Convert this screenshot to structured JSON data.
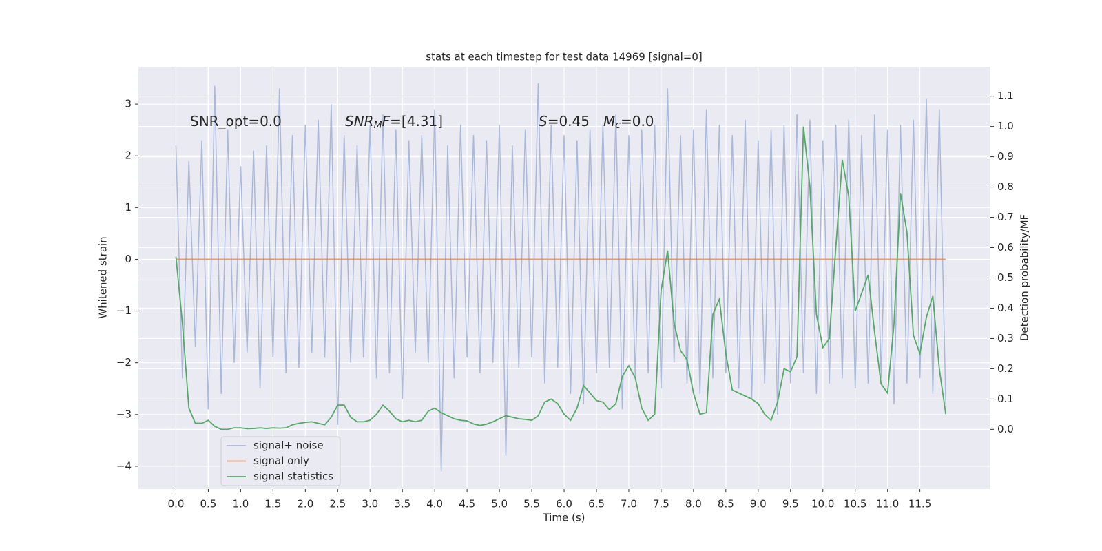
{
  "chart_data": {
    "type": "line",
    "title": "stats at each timestep for test data 14969 [signal=0]",
    "xlabel": "Time (s)",
    "ylabel": "Whitened strain",
    "y2label": "Detection probability/MF",
    "annotations": [
      [
        "SNR_opt=0.0"
      ],
      [
        "SNR",
        "M",
        "F",
        "=[4.31]"
      ],
      [
        "S",
        "=0.45"
      ],
      [
        "M",
        "c",
        "=0.0"
      ]
    ],
    "grid": true,
    "legend": "lower left",
    "xlim": [
      -0.58,
      12.59
    ],
    "ylim": [
      -4.44,
      3.72
    ],
    "y2lim": [
      -0.197,
      1.197
    ],
    "xticks": [
      {
        "value": 0,
        "label": "0.0"
      },
      0.5,
      {
        "value": 1,
        "label": "1.0"
      },
      1.5,
      {
        "value": 2,
        "label": "2.0"
      },
      2.5,
      {
        "value": 3,
        "label": "3.0"
      },
      3.5,
      {
        "value": 4,
        "label": "4.0"
      },
      4.5,
      {
        "value": 5,
        "label": "5.0"
      },
      5.5,
      {
        "value": 6,
        "label": "6.0"
      },
      6.5,
      {
        "value": 7,
        "label": "7.0"
      },
      7.5,
      {
        "value": 8,
        "label": "8.0"
      },
      8.5,
      {
        "value": 9,
        "label": "9.0"
      },
      9.5,
      {
        "value": 10,
        "label": "10.0"
      },
      10.5,
      {
        "value": 11,
        "label": "11.0"
      },
      11.5
    ],
    "yticks": [
      {
        "value": -4,
        "label": "−4"
      },
      {
        "value": -3,
        "label": "−3"
      },
      {
        "value": -2,
        "label": "−2"
      },
      {
        "value": -1,
        "label": "−1"
      },
      0,
      1,
      2,
      3
    ],
    "y2ticks": [
      {
        "value": 0,
        "label": "0.0"
      },
      0.1,
      0.2,
      0.3,
      0.4,
      0.5,
      0.6,
      0.7,
      0.8,
      0.9,
      {
        "value": 1,
        "label": "1.0"
      },
      1.1
    ],
    "x": [
      0,
      0.1,
      0.2,
      0.3,
      0.4,
      0.5,
      0.6,
      0.7,
      0.8,
      0.9,
      1,
      1.1,
      1.2,
      1.3,
      1.4,
      1.5,
      1.6,
      1.7,
      1.8,
      1.9,
      2,
      2.1,
      2.2,
      2.3,
      2.4,
      2.5,
      2.6,
      2.7,
      2.8,
      2.9,
      3,
      3.1,
      3.2,
      3.3,
      3.4,
      3.5,
      3.6,
      3.7,
      3.8,
      3.9,
      4,
      4.1,
      4.2,
      4.3,
      4.4,
      4.5,
      4.6,
      4.7,
      4.8,
      4.9,
      5,
      5.1,
      5.2,
      5.3,
      5.4,
      5.5,
      5.6,
      5.7,
      5.8,
      5.9,
      6,
      6.1,
      6.2,
      6.3,
      6.4,
      6.5,
      6.6,
      6.7,
      6.8,
      6.9,
      7,
      7.1,
      7.2,
      7.3,
      7.4,
      7.5,
      7.6,
      7.7,
      7.8,
      7.9,
      8,
      8.1,
      8.2,
      8.3,
      8.4,
      8.5,
      8.6,
      8.7,
      8.8,
      8.9,
      9,
      9.1,
      9.2,
      9.3,
      9.4,
      9.5,
      9.6,
      9.7,
      9.8,
      9.9,
      10,
      10.1,
      10.2,
      10.3,
      10.4,
      10.5,
      10.6,
      10.7,
      10.8,
      10.9,
      11,
      11.1,
      11.2,
      11.3,
      11.4,
      11.5,
      11.6,
      11.7,
      11.8,
      11.9
    ],
    "series": [
      {
        "name": "signal+ noise",
        "color": "#9aabd3",
        "values": [
          2.2,
          -2.3,
          1.9,
          -1.7,
          2.3,
          -2.9,
          3.35,
          -2.6,
          2.5,
          -2.0,
          1.8,
          -1.8,
          2.1,
          -2.5,
          2.2,
          -1.9,
          3.3,
          -2.2,
          2.4,
          -2.1,
          2.6,
          -1.8,
          2.7,
          -1.9,
          3.0,
          -3.2,
          2.4,
          -2.0,
          2.2,
          -1.9,
          2.6,
          -2.3,
          2.8,
          -2.2,
          2.5,
          -2.7,
          2.3,
          -1.8,
          2.4,
          -2.0,
          2.9,
          -4.1,
          2.2,
          -2.3,
          2.6,
          -1.9,
          2.4,
          -2.2,
          2.3,
          -2.0,
          2.6,
          -3.8,
          2.2,
          -2.1,
          2.5,
          -1.9,
          3.4,
          -2.4,
          2.6,
          -2.1,
          2.4,
          -2.6,
          2.3,
          -2.8,
          2.5,
          -2.2,
          2.6,
          -2.1,
          2.8,
          -2.9,
          2.4,
          -2.3,
          2.5,
          -2.2,
          2.6,
          -2.5,
          3.3,
          -2.0,
          2.4,
          -2.4,
          2.5,
          -2.6,
          2.9,
          -2.3,
          2.6,
          -2.2,
          2.4,
          -2.5,
          2.7,
          -2.7,
          2.3,
          -2.4,
          2.5,
          -3.0,
          2.6,
          -2.4,
          2.8,
          -2.2,
          2.7,
          -2.6,
          2.3,
          -2.4,
          2.6,
          -2.3,
          2.7,
          -2.5,
          2.4,
          -2.4,
          2.8,
          -2.3,
          2.5,
          -2.8,
          2.6,
          -2.4,
          2.7,
          -2.3,
          3.1,
          -2.6,
          2.9,
          -2.8
        ]
      },
      {
        "name": "signal only",
        "color": "#dd8452",
        "values": [
          0,
          0,
          0,
          0,
          0,
          0,
          0,
          0,
          0,
          0,
          0,
          0,
          0,
          0,
          0,
          0,
          0,
          0,
          0,
          0,
          0,
          0,
          0,
          0,
          0,
          0,
          0,
          0,
          0,
          0,
          0,
          0,
          0,
          0,
          0,
          0,
          0,
          0,
          0,
          0,
          0,
          0,
          0,
          0,
          0,
          0,
          0,
          0,
          0,
          0,
          0,
          0,
          0,
          0,
          0,
          0,
          0,
          0,
          0,
          0,
          0,
          0,
          0,
          0,
          0,
          0,
          0,
          0,
          0,
          0,
          0,
          0,
          0,
          0,
          0,
          0,
          0,
          0,
          0,
          0,
          0,
          0,
          0,
          0,
          0,
          0,
          0,
          0,
          0,
          0,
          0,
          0,
          0,
          0,
          0,
          0,
          0,
          0,
          0,
          0,
          0,
          0,
          0,
          0,
          0,
          0,
          0,
          0,
          0,
          0,
          0,
          0,
          0,
          0,
          0,
          0,
          0,
          0,
          0,
          0
        ]
      },
      {
        "name": "signal statistics",
        "color": "#55a868",
        "axis": "y2",
        "values": [
          0.57,
          0.35,
          0.07,
          0.02,
          0.02,
          0.03,
          0.01,
          0.0,
          0.0,
          0.005,
          0.005,
          0.002,
          0.003,
          0.005,
          0.003,
          0.005,
          0.004,
          0.005,
          0.015,
          0.02,
          0.023,
          0.025,
          0.02,
          0.015,
          0.04,
          0.08,
          0.08,
          0.04,
          0.025,
          0.025,
          0.03,
          0.05,
          0.08,
          0.06,
          0.035,
          0.025,
          0.03,
          0.025,
          0.03,
          0.06,
          0.07,
          0.055,
          0.045,
          0.035,
          0.03,
          0.028,
          0.018,
          0.013,
          0.017,
          0.025,
          0.035,
          0.045,
          0.04,
          0.035,
          0.033,
          0.03,
          0.045,
          0.09,
          0.1,
          0.085,
          0.05,
          0.03,
          0.07,
          0.145,
          0.12,
          0.095,
          0.09,
          0.065,
          0.085,
          0.175,
          0.21,
          0.17,
          0.07,
          0.03,
          0.05,
          0.46,
          0.59,
          0.35,
          0.26,
          0.23,
          0.12,
          0.05,
          0.055,
          0.38,
          0.43,
          0.25,
          0.13,
          0.12,
          0.11,
          0.1,
          0.085,
          0.05,
          0.03,
          0.09,
          0.2,
          0.19,
          0.24,
          1.0,
          0.8,
          0.38,
          0.27,
          0.3,
          0.6,
          0.89,
          0.77,
          0.39,
          0.45,
          0.51,
          0.32,
          0.15,
          0.12,
          0.35,
          0.78,
          0.65,
          0.31,
          0.25,
          0.37,
          0.44,
          0.2,
          0.05
        ]
      }
    ]
  }
}
